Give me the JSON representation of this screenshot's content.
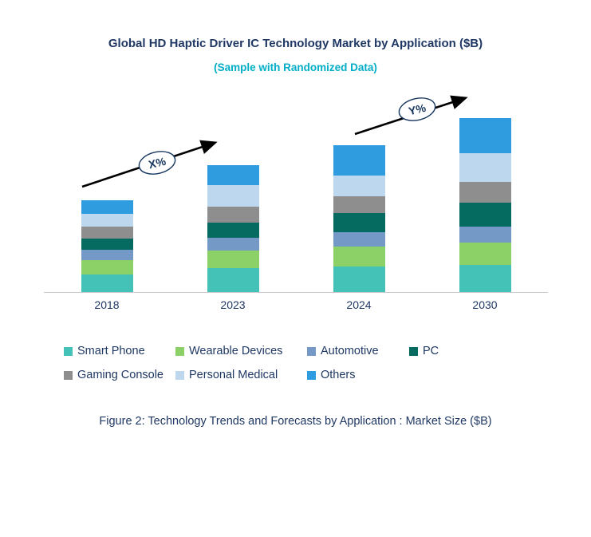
{
  "title": "Global HD Haptic Driver IC Technology Market by Application ($B)",
  "subtitle": "(Sample with Randomized Data)",
  "caption": "Figure 2: Technology Trends and Forecasts by Application : Market Size ($B)",
  "annotations": {
    "arrow1_label": "X%",
    "arrow2_label": "Y%"
  },
  "colors": {
    "title_text": "#1F3864",
    "subtitle_text": "#00AEC7",
    "body_text": "#1F3864",
    "axis_line": "#C9C9C9",
    "arrow": "#000000",
    "ellipse_outline": "#17375E"
  },
  "chart_data": {
    "type": "bar",
    "stacked": true,
    "title": "Global HD Haptic Driver IC Technology Market by Application ($B)",
    "subtitle": "(Sample with Randomized Data)",
    "xlabel": "",
    "ylabel": "Market Size ($B)",
    "ylim": [
      0,
      2.5
    ],
    "y_axis_visible": false,
    "grid": false,
    "legend_position": "bottom",
    "categories": [
      "2018",
      "2023",
      "2024",
      "2030"
    ],
    "series": [
      {
        "name": "Smart Phone",
        "color": "#45C2B8",
        "values": [
          0.22,
          0.3,
          0.32,
          0.34
        ]
      },
      {
        "name": "Wearable Devices",
        "color": "#8CD167",
        "values": [
          0.18,
          0.22,
          0.25,
          0.28
        ]
      },
      {
        "name": "Automotive",
        "color": "#7599C7",
        "values": [
          0.13,
          0.16,
          0.18,
          0.2
        ]
      },
      {
        "name": "PC",
        "color": "#056A5F",
        "values": [
          0.14,
          0.19,
          0.24,
          0.3
        ]
      },
      {
        "name": "Gaming Console",
        "color": "#8E8E8E",
        "values": [
          0.15,
          0.2,
          0.21,
          0.26
        ]
      },
      {
        "name": "Personal Medical",
        "color": "#BDD7EE",
        "values": [
          0.16,
          0.27,
          0.26,
          0.36
        ]
      },
      {
        "name": "Others",
        "color": "#2E9CDF",
        "values": [
          0.17,
          0.25,
          0.38,
          0.44
        ]
      }
    ],
    "totals": [
      1.15,
      1.59,
      1.84,
      2.18
    ]
  }
}
